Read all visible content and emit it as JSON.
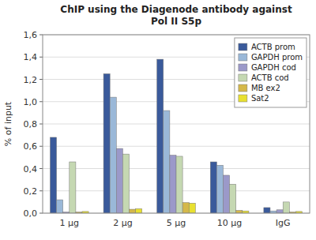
{
  "chart_data": {
    "type": "bar",
    "title": "ChIP using the Diagenode antibody against\nPol II S5p",
    "y_label": "% of input",
    "categories": [
      "1 μg",
      "2 μg",
      "5 μg",
      "10 μg",
      "IgG"
    ],
    "series": [
      {
        "name": "ACTB prom",
        "color": "#3A5A9B",
        "values": [
          0.68,
          1.25,
          1.38,
          0.46,
          0.05
        ]
      },
      {
        "name": "GAPDH prom",
        "color": "#9AB8D8",
        "values": [
          0.12,
          1.04,
          0.92,
          0.43,
          0.02
        ]
      },
      {
        "name": "GAPDH cod",
        "color": "#9B99C9",
        "values": [
          0.01,
          0.58,
          0.52,
          0.34,
          0.03
        ]
      },
      {
        "name": "ACTB cod",
        "color": "#C5D8B2",
        "values": [
          0.46,
          0.53,
          0.51,
          0.26,
          0.1
        ]
      },
      {
        "name": "MB ex2",
        "color": "#D4B84A",
        "values": [
          0.01,
          0.035,
          0.095,
          0.025,
          0.01
        ]
      },
      {
        "name": "Sat2",
        "color": "#E8E030",
        "values": [
          0.015,
          0.04,
          0.09,
          0.02,
          0.015
        ]
      }
    ],
    "ylim": [
      0,
      1.6
    ],
    "yticks": [
      {
        "value": 0.0,
        "label": "0,0"
      },
      {
        "value": 0.2,
        "label": "0,2"
      },
      {
        "value": 0.4,
        "label": "0,4"
      },
      {
        "value": 0.6,
        "label": "0,6"
      },
      {
        "value": 0.8,
        "label": "0,8"
      },
      {
        "value": 1.0,
        "label": "1,0"
      },
      {
        "value": 1.2,
        "label": "1,2"
      },
      {
        "value": 1.4,
        "label": "1,4"
      },
      {
        "value": 1.6,
        "label": "1,6"
      }
    ],
    "grid": true,
    "legend": "upper right"
  }
}
